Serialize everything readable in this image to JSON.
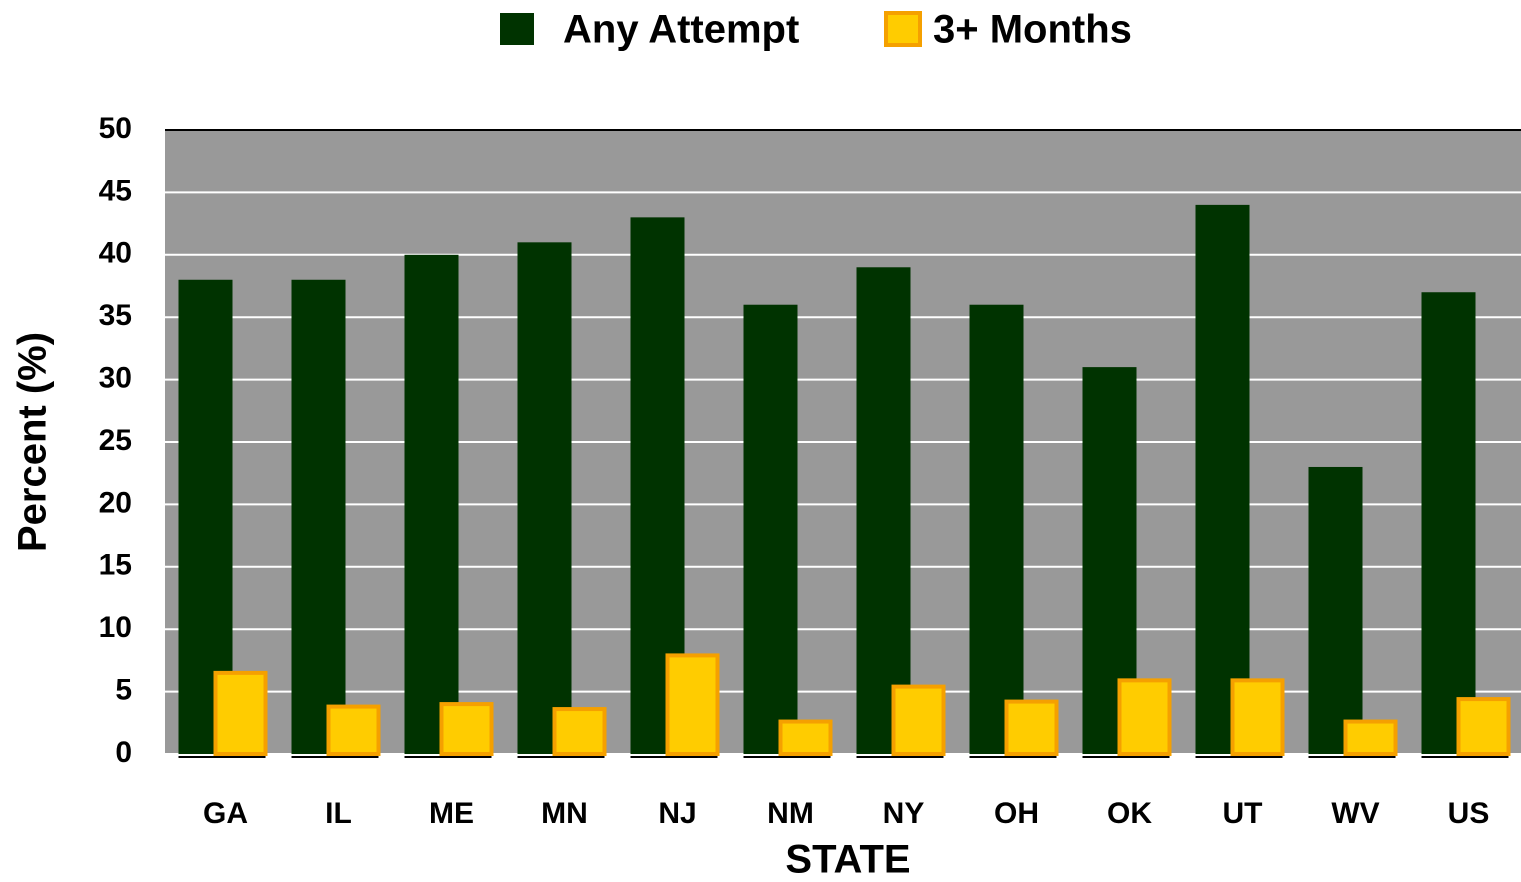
{
  "chart_data": {
    "type": "bar",
    "x_label": "STATE",
    "y_label": "Percent (%)",
    "categories": [
      "GA",
      "IL",
      "ME",
      "MN",
      "NJ",
      "NM",
      "NY",
      "OH",
      "OK",
      "UT",
      "WV",
      "US"
    ],
    "series": [
      {
        "name": "Any Attempt",
        "color": "#003300",
        "values": [
          38,
          38,
          40,
          41,
          43,
          36,
          39,
          36,
          31,
          44,
          23,
          37
        ]
      },
      {
        "name": "3+ Months",
        "color": "#ffcc00",
        "values": [
          6.5,
          3.8,
          4.0,
          3.6,
          7.9,
          2.6,
          5.4,
          4.2,
          5.9,
          5.9,
          2.6,
          4.4
        ]
      }
    ],
    "ylim": [
      0,
      50
    ],
    "yticks": [
      0,
      5,
      10,
      15,
      20,
      25,
      30,
      35,
      40,
      45,
      50
    ],
    "grid": true
  }
}
